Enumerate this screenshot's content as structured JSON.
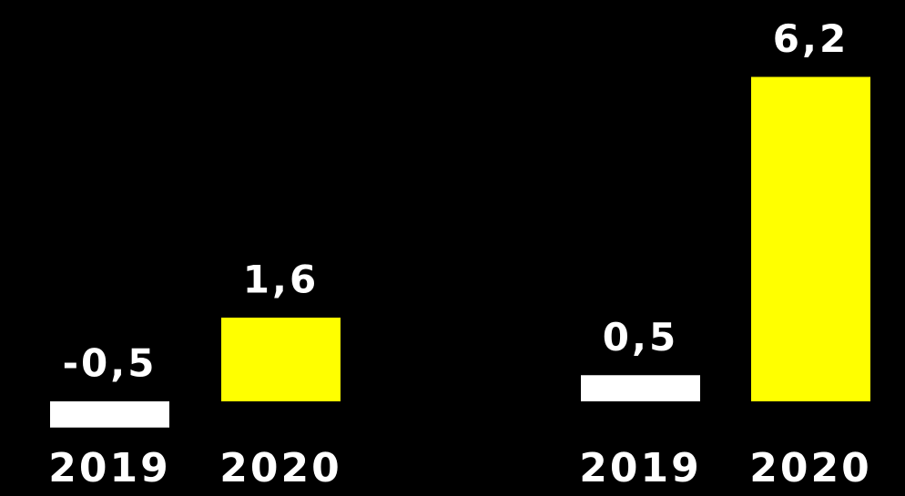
{
  "chart_data": [
    {
      "type": "bar",
      "categories": [
        "2019",
        "2020"
      ],
      "values": [
        -0.5,
        1.6
      ],
      "value_labels": [
        "-0,5",
        "1,6"
      ],
      "colors": [
        "#ffffff",
        "#ffff00"
      ]
    },
    {
      "type": "bar",
      "categories": [
        "2019",
        "2020"
      ],
      "values": [
        0.5,
        6.2
      ],
      "value_labels": [
        "0,5",
        "6,2"
      ],
      "colors": [
        "#ffffff",
        "#ffff00"
      ]
    }
  ]
}
